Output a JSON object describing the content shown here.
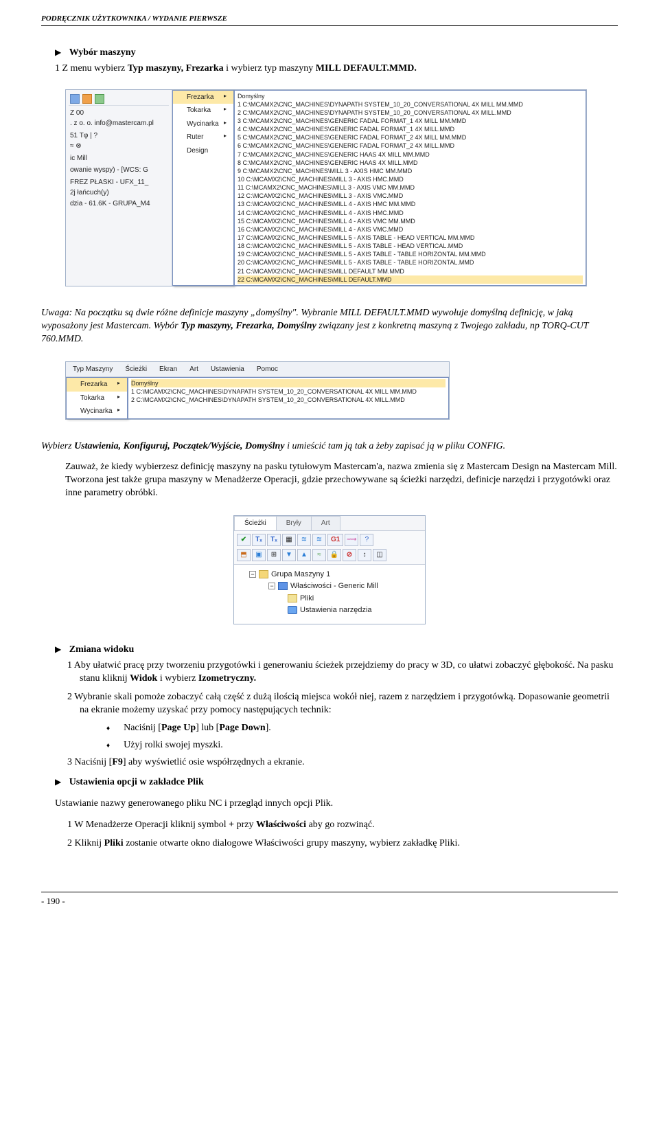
{
  "header": "PODRĘCZNIK UŻYTKOWNIKA / WYDANIE PIERWSZE",
  "sec1": {
    "title": "Wybór maszyny",
    "line1_pre": "1   Z menu wybierz ",
    "line1_b1": "Typ maszyny, Frezarka",
    "line1_mid": " i wybierz typ maszyny ",
    "line1_b2": "MILL DEFAULT.MMD."
  },
  "ss1": {
    "left_rows": [
      "Z    00",
      ". z o. o.    info@mastercam.pl",
      "",
      "51  Tφ  |  ?",
      "≈  ⊗",
      "",
      "ic Mill",
      "",
      "owanie wyspy) - [WCS: G",
      "",
      "FREZ PŁASKI - UFX_11_",
      "2j łańcuch(y)",
      "dzia - 61.6K - GRUPA_M4"
    ],
    "menu": [
      {
        "label": "Frezarka",
        "hi": true,
        "arrow": true
      },
      {
        "label": "Tokarka",
        "arrow": true
      },
      {
        "label": "Wycinarka",
        "arrow": true
      },
      {
        "label": "Ruter",
        "arrow": true
      },
      {
        "label": "Design"
      }
    ],
    "list": [
      "Domyślny",
      "1  C:\\MCAMX2\\CNC_MACHINES\\DYNAPATH SYSTEM_10_20_CONVERSATIONAL 4X MILL MM.MMD",
      "2  C:\\MCAMX2\\CNC_MACHINES\\DYNAPATH SYSTEM_10_20_CONVERSATIONAL 4X MILL.MMD",
      "3  C:\\MCAMX2\\CNC_MACHINES\\GENERIC FADAL FORMAT_1 4X MILL MM.MMD",
      "4  C:\\MCAMX2\\CNC_MACHINES\\GENERIC FADAL FORMAT_1 4X MILL.MMD",
      "5  C:\\MCAMX2\\CNC_MACHINES\\GENERIC FADAL FORMAT_2 4X MILL MM.MMD",
      "6  C:\\MCAMX2\\CNC_MACHINES\\GENERIC FADAL FORMAT_2 4X MILL.MMD",
      "7  C:\\MCAMX2\\CNC_MACHINES\\GENERIC HAAS 4X MILL MM.MMD",
      "8  C:\\MCAMX2\\CNC_MACHINES\\GENERIC HAAS 4X MILL.MMD",
      "9  C:\\MCAMX2\\CNC_MACHINES\\MILL 3 - AXIS HMC MM.MMD",
      "10  C:\\MCAMX2\\CNC_MACHINES\\MILL 3 - AXIS HMC.MMD",
      "11  C:\\MCAMX2\\CNC_MACHINES\\MILL 3 - AXIS VMC MM.MMD",
      "12  C:\\MCAMX2\\CNC_MACHINES\\MILL 3 - AXIS VMC.MMD",
      "13  C:\\MCAMX2\\CNC_MACHINES\\MILL 4 - AXIS HMC MM.MMD",
      "14  C:\\MCAMX2\\CNC_MACHINES\\MILL 4 - AXIS HMC.MMD",
      "15  C:\\MCAMX2\\CNC_MACHINES\\MILL 4 - AXIS VMC MM.MMD",
      "16  C:\\MCAMX2\\CNC_MACHINES\\MILL 4 - AXIS VMC.MMD",
      "17  C:\\MCAMX2\\CNC_MACHINES\\MILL 5 - AXIS TABLE - HEAD VERTICAL MM.MMD",
      "18  C:\\MCAMX2\\CNC_MACHINES\\MILL 5 - AXIS TABLE - HEAD VERTICAL.MMD",
      "19  C:\\MCAMX2\\CNC_MACHINES\\MILL 5 - AXIS TABLE - TABLE HORIZONTAL MM.MMD",
      "20  C:\\MCAMX2\\CNC_MACHINES\\MILL 5 - AXIS TABLE - TABLE HORIZONTAL.MMD",
      "21  C:\\MCAMX2\\CNC_MACHINES\\MILL DEFAULT MM.MMD",
      "22  C:\\MCAMX2\\CNC_MACHINES\\MILL DEFAULT.MMD"
    ],
    "list_hi_index": 22
  },
  "note1": {
    "pre": "Uwaga: Na początku są dwie różne definicje maszyny „domyślny\". Wybranie MILL DEFAULT.MMD wywołuje domyślną definicję, w jaką wyposażony jest Mastercam. Wybór ",
    "b": "Typ maszyny, Frezarka, Domyślny",
    "post": " związany jest z konkretną maszyną z Twojego zakładu, np TORQ-CUT 760.MMD."
  },
  "ss2": {
    "menubar": [
      "Typ Maszyny",
      "Ścieżki",
      "Ekran",
      "Art",
      "Ustawienia",
      "Pomoc"
    ],
    "left": [
      {
        "label": "Frezarka",
        "hi": true,
        "arrow": true
      },
      {
        "label": "Tokarka",
        "arrow": true
      },
      {
        "label": "Wycinarka",
        "arrow": true
      }
    ],
    "list": [
      "Domyślny",
      "1  C:\\MCAMX2\\CNC_MACHINES\\DYNAPATH SYSTEM_10_20_CONVERSATIONAL 4X MILL MM.MMD",
      "2  C:\\MCAMX2\\CNC_MACHINES\\DYNAPATH SYSTEM_10_20_CONVERSATIONAL 4X MILL.MMD"
    ],
    "list_hi_index": 0
  },
  "note2": {
    "pre": "Wybierz ",
    "b": "Ustawienia, Konfiguruj, Początek/Wyjście, Domyślny",
    "post": " i umieścić tam ją tak a żeby zapisać ją w pliku CONFIG."
  },
  "para2": "Zauważ, że kiedy wybierzesz definicję maszyny na pasku tytułowym Mastercam'a, nazwa zmienia się z Mastercam Design na Mastercam Mill. Tworzona jest także grupa maszyny w Menadżerze Operacji, gdzie przechowywane są ścieżki narzędzi, definicje narzędzi i przygotówki oraz inne parametry obróbki.",
  "ss3": {
    "tabs": [
      "Ścieżki",
      "Bryły",
      "Art"
    ],
    "toolbar_g1": "G1",
    "tree": {
      "root": "Grupa Maszyny 1",
      "prop": "Właściwości - Generic Mill",
      "files": "Pliki",
      "tools": "Ustawienia narzędzia"
    }
  },
  "sec2": {
    "title": "Zmiana widoku",
    "p1_pre": "1   Aby ułatwić pracę przy tworzeniu przygotówki i generowaniu ścieżek przejdziemy do pracy w 3D, co ułatwi zobaczyć głębokość. Na pasku stanu kliknij ",
    "p1_b1": "Widok",
    "p1_mid": " i wybierz ",
    "p1_b2": "Izometryczny.",
    "p2": "2   Wybranie skali pomoże zobaczyć całą część z dużą ilością miejsca wokół niej, razem z narzędziem i przygotówką. Dopasowanie geometrii na ekranie możemy uzyskać przy pomocy następujących technik:",
    "b1_pre": "Naciśnij [",
    "b1_b1": "Page Up",
    "b1_mid": "] lub [",
    "b1_b2": "Page Down",
    "b1_post": "].",
    "b2": "Użyj rolki swojej myszki.",
    "p3_pre": "3   Naciśnij [",
    "p3_b": "F9",
    "p3_post": "] aby wyświetlić osie współrzędnych a ekranie."
  },
  "sec3": {
    "title": "Ustawienia opcji w zakładce Plik",
    "p0": "Ustawianie nazwy generowanego pliku NC i przegląd innych opcji Plik.",
    "p1_pre": "1   W Menadżerze Operacji kliknij symbol ",
    "p1_b1": "+",
    "p1_mid": " przy ",
    "p1_b2": "Właściwości",
    "p1_post": " aby go rozwinąć.",
    "p2_pre": "2   Kliknij ",
    "p2_b": "Pliki",
    "p2_post": " zostanie otwarte okno dialogowe Właściwości grupy maszyny, wybierz zakładkę Pliki."
  },
  "footer": "- 190 -"
}
